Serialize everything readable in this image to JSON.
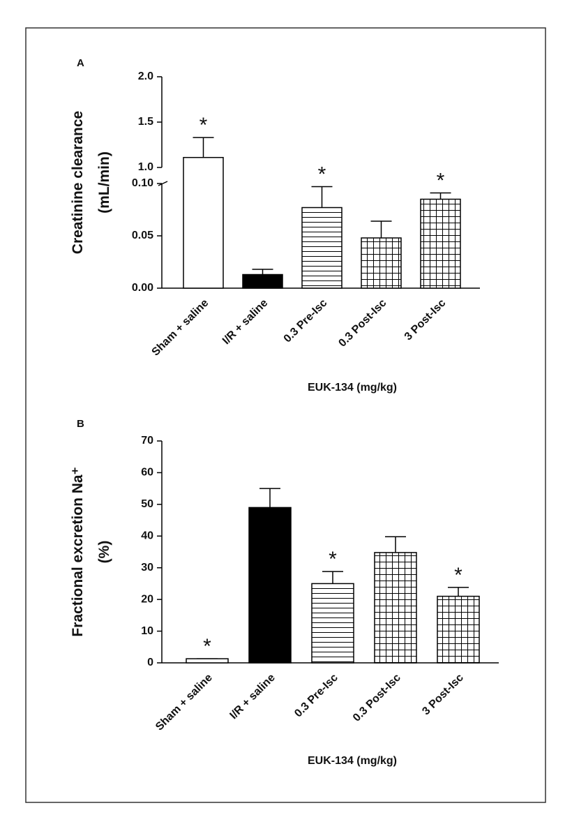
{
  "chart_data": [
    {
      "type": "bar",
      "panel_label": "A",
      "ylabel": [
        "Creatinine clearance",
        "(mL/min)"
      ],
      "xlabel": "EUK-134 (mg/kg)",
      "categories": [
        "Sham + saline",
        "I/R + saline",
        "0.3 Pre-Isc",
        "0.3 Post-Isc",
        "3 Post-Isc"
      ],
      "values": [
        1.11,
        0.013,
        0.077,
        0.048,
        0.085
      ],
      "errors": [
        0.22,
        0.005,
        0.02,
        0.016,
        0.006
      ],
      "annotations": [
        "*",
        null,
        "*",
        null,
        "*"
      ],
      "patterns": [
        "none",
        "solid",
        "hlines",
        "grid",
        "grid"
      ],
      "ylim": [
        0,
        2.0
      ],
      "axis_break": [
        0.1,
        1.0
      ],
      "yticks": [
        {
          "value": 0,
          "label": "0.00"
        },
        {
          "value": 0.05,
          "label": "0.05"
        },
        {
          "value": 0.1,
          "label": "0.10"
        },
        {
          "value": 1.0,
          "label": "1.0"
        },
        {
          "value": 1.5,
          "label": "1.5"
        },
        {
          "value": 2.0,
          "label": "2.0"
        }
      ]
    },
    {
      "type": "bar",
      "panel_label": "B",
      "ylabel": [
        "Fractional excretion Na⁺",
        "(%)"
      ],
      "xlabel": "EUK-134 (mg/kg)",
      "categories": [
        "Sham + saline",
        "I/R + saline",
        "0.3 Pre-Isc",
        "0.3 Post-Isc",
        "3 Post-Isc"
      ],
      "values": [
        1.3,
        49,
        25,
        34.8,
        21
      ],
      "errors": [
        0,
        6,
        3.8,
        5,
        2.8
      ],
      "annotations": [
        "*",
        null,
        "*",
        null,
        "*"
      ],
      "patterns": [
        "none",
        "solid",
        "hlines",
        "grid",
        "grid"
      ],
      "ylim": [
        0,
        70
      ],
      "yticks": [
        0,
        10,
        20,
        30,
        40,
        50,
        60,
        70
      ]
    }
  ]
}
